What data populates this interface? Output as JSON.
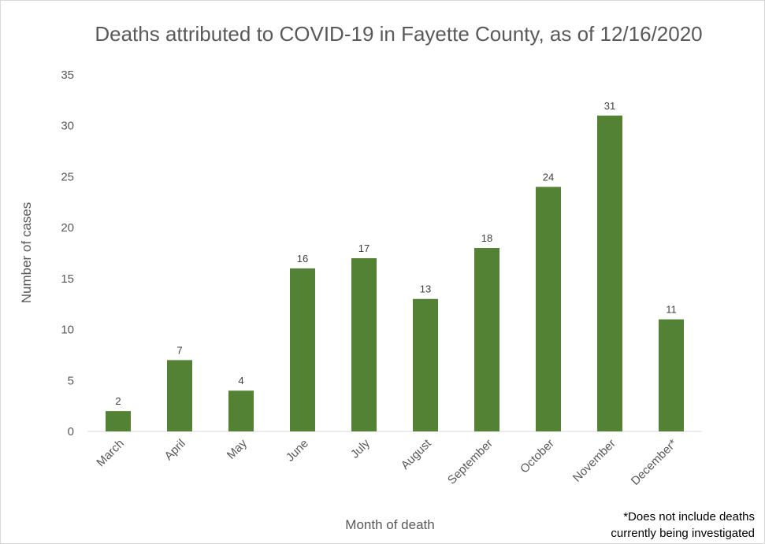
{
  "chart_data": {
    "type": "bar",
    "title": "Deaths attributed to COVID-19 in Fayette County, as of 12/16/2020",
    "xlabel": "Month of death",
    "ylabel": "Number of cases",
    "categories": [
      "March",
      "April",
      "May",
      "June",
      "July",
      "August",
      "September",
      "October",
      "November",
      "December*"
    ],
    "values": [
      2,
      7,
      4,
      16,
      17,
      13,
      18,
      24,
      31,
      11
    ],
    "ylim": [
      0,
      35
    ],
    "yticks": [
      0,
      5,
      10,
      15,
      20,
      25,
      30,
      35
    ],
    "grid": false,
    "legend": "none",
    "data_labels": true,
    "bar_color": "#548235",
    "footnote_line1": "*Does not include deaths",
    "footnote_line2": "currently being investigated"
  }
}
